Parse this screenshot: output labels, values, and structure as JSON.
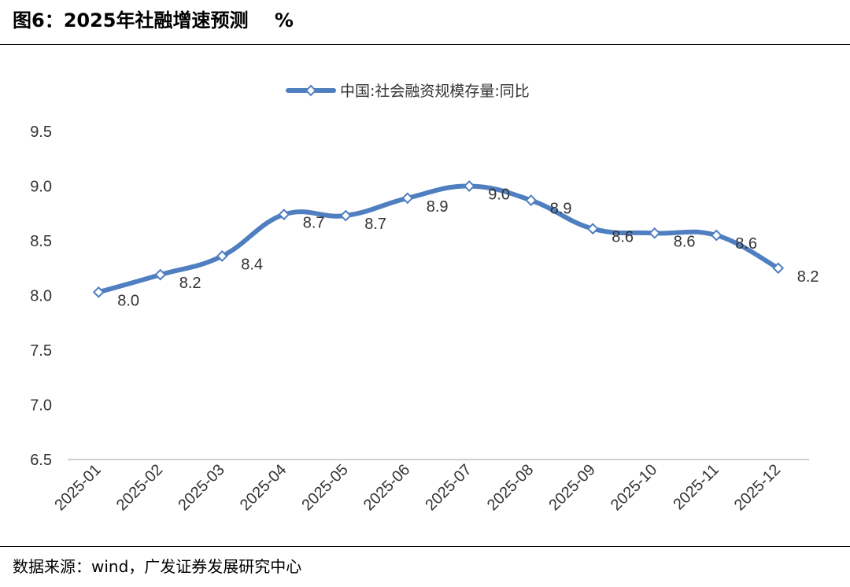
{
  "header": {
    "title": "图6：2025年社融增速预测    %"
  },
  "footer": {
    "source": "数据来源：wind，广发证券发展研究中心"
  },
  "chart_data": {
    "type": "line",
    "title": "",
    "xlabel": "",
    "ylabel": "",
    "categories": [
      "2025-01",
      "2025-02",
      "2025-03",
      "2025-04",
      "2025-05",
      "2025-06",
      "2025-07",
      "2025-08",
      "2025-09",
      "2025-10",
      "2025-11",
      "2025-12"
    ],
    "series": [
      {
        "name": "中国:社会融资规模存量:同比",
        "values": [
          8.03,
          8.19,
          8.36,
          8.74,
          8.73,
          8.89,
          9.0,
          8.87,
          8.61,
          8.57,
          8.55,
          8.25
        ],
        "data_labels": [
          "8.0",
          "8.2",
          "8.4",
          "8.7",
          "8.7",
          "8.9",
          "9.0",
          "8.9",
          "8.6",
          "8.6",
          "8.6",
          "8.2"
        ],
        "color": "#4f7fc0",
        "marker": "diamond-open",
        "smooth": true
      }
    ],
    "ylim": [
      6.5,
      9.5
    ],
    "yticks": [
      "6.5",
      "7.0",
      "7.5",
      "8.0",
      "8.5",
      "9.0",
      "9.5"
    ],
    "grid": false,
    "legend": "top-center"
  }
}
